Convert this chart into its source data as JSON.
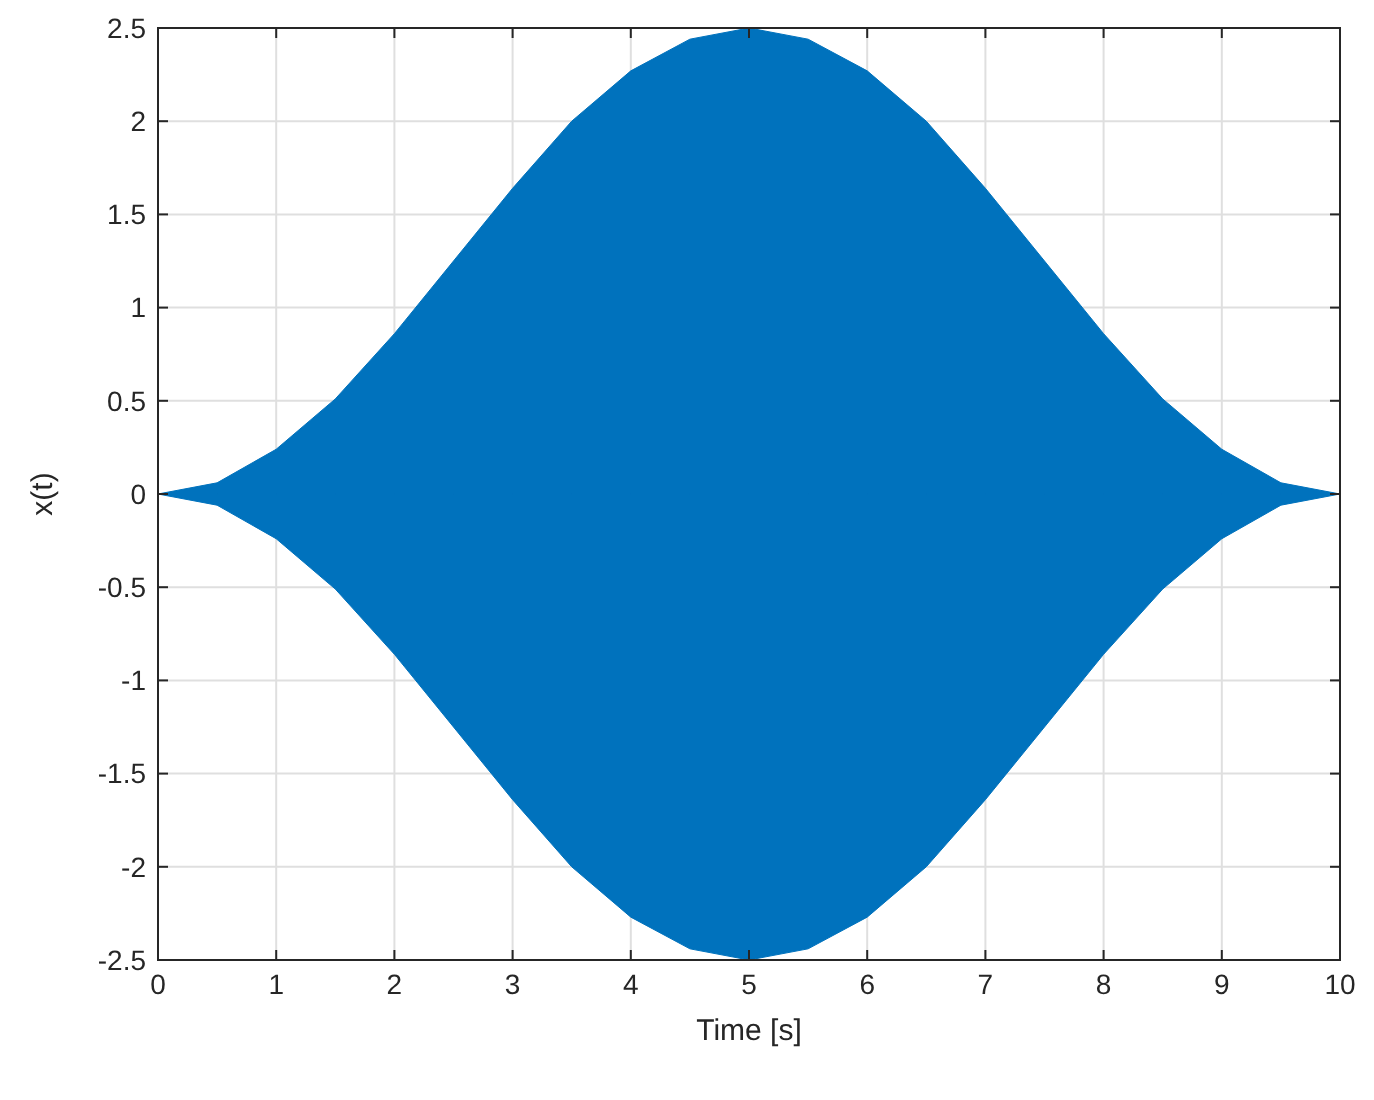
{
  "chart_data": {
    "type": "area",
    "xlabel": "Time [s]",
    "ylabel": "x(t)",
    "x": [
      0,
      0.5,
      1,
      1.5,
      2,
      2.5,
      3,
      3.5,
      4,
      4.5,
      5,
      5.5,
      6,
      6.5,
      7,
      7.5,
      8,
      8.5,
      9,
      9.5,
      10
    ],
    "series": [
      {
        "color": "#0072bd",
        "values": [
          0,
          0.06,
          0.24,
          0.51,
          0.86,
          1.25,
          1.64,
          2.0,
          2.27,
          2.44,
          2.5,
          2.44,
          2.27,
          2.0,
          1.64,
          1.25,
          0.86,
          0.51,
          0.24,
          0.06,
          0
        ]
      },
      {
        "color": "#0072bd",
        "values": [
          0,
          -0.06,
          -0.24,
          -0.51,
          -0.86,
          -1.25,
          -1.64,
          -2.0,
          -2.27,
          -2.44,
          -2.5,
          -2.44,
          -2.27,
          -2.0,
          -1.64,
          -1.25,
          -0.86,
          -0.51,
          -0.24,
          -0.06,
          0
        ]
      }
    ],
    "xlim": [
      0,
      10
    ],
    "xticks": [
      0,
      1,
      2,
      3,
      4,
      5,
      6,
      7,
      8,
      9,
      10
    ],
    "ylim": [
      -2.5,
      2.5
    ],
    "yticks": [
      -2.5,
      -2,
      -1.5,
      -1,
      -0.5,
      0,
      0.5,
      1,
      1.5,
      2,
      2.5
    ],
    "grid": true
  }
}
